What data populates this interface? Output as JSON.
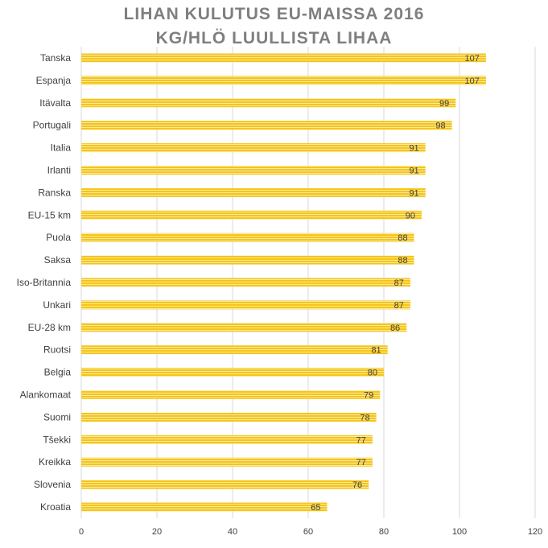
{
  "chart_data": {
    "type": "bar",
    "orientation": "horizontal",
    "title": "LIHAN KULUTUS EU-MAISSA 2016",
    "subtitle": "KG/HLÖ LUULLISTA LIHAA",
    "categories": [
      "Tanska",
      "Espanja",
      "Itävalta",
      "Portugali",
      "Italia",
      "Irlanti",
      "Ranska",
      "EU-15 km",
      "Puola",
      "Saksa",
      "Iso-Britannia",
      "Unkari",
      "EU-28 km",
      "Ruotsi",
      "Belgia",
      "Alankomaat",
      "Suomi",
      "Tšekki",
      "Kreikka",
      "Slovenia",
      "Kroatia"
    ],
    "values": [
      107,
      107,
      99,
      98,
      91,
      91,
      91,
      90,
      88,
      88,
      87,
      87,
      86,
      81,
      80,
      79,
      78,
      77,
      77,
      76,
      65
    ],
    "xlim": [
      0,
      120
    ],
    "xticks": [
      "0",
      "20",
      "40",
      "60",
      "80",
      "100",
      "120"
    ],
    "grid": true,
    "bar_color": "#f5c518",
    "data_labels": true
  }
}
